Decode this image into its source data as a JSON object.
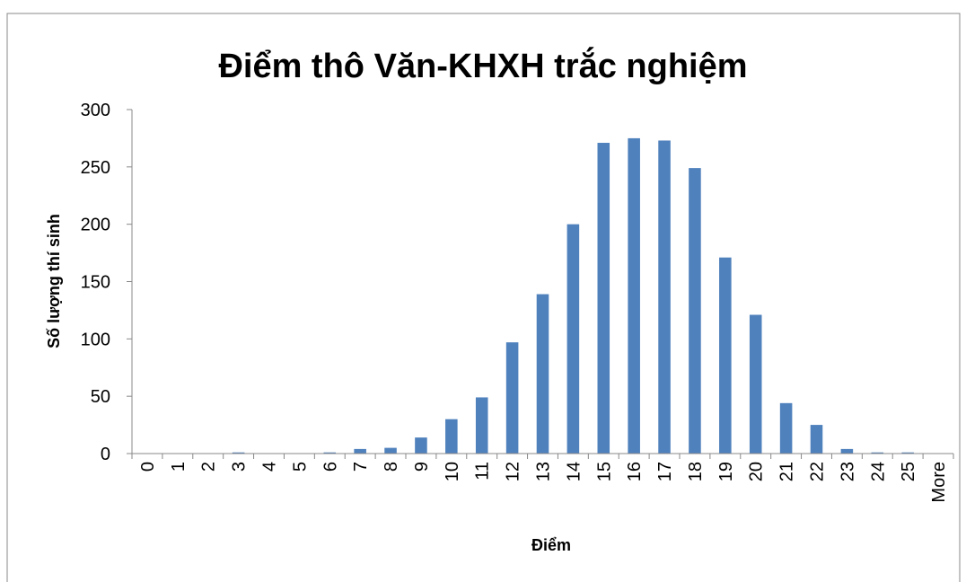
{
  "chart_data": {
    "type": "bar",
    "title": "Điểm thô Văn-KHXH trắc nghiệm",
    "x_label": "Điểm",
    "y_label": "Số lượng thí sinh",
    "categories": [
      "0",
      "1",
      "2",
      "3",
      "4",
      "5",
      "6",
      "7",
      "8",
      "9",
      "10",
      "11",
      "12",
      "13",
      "14",
      "15",
      "16",
      "17",
      "18",
      "19",
      "20",
      "21",
      "22",
      "23",
      "24",
      "25",
      "More"
    ],
    "values": [
      0,
      0,
      0,
      1,
      0,
      0,
      1,
      4,
      5,
      14,
      30,
      49,
      97,
      139,
      200,
      271,
      275,
      273,
      249,
      171,
      121,
      44,
      25,
      4,
      1,
      1,
      0
    ],
    "color": "#4f81bd",
    "ylim": [
      0,
      300
    ],
    "yticks": [
      0,
      50,
      100,
      150,
      200,
      250,
      300
    ],
    "grid": false
  }
}
